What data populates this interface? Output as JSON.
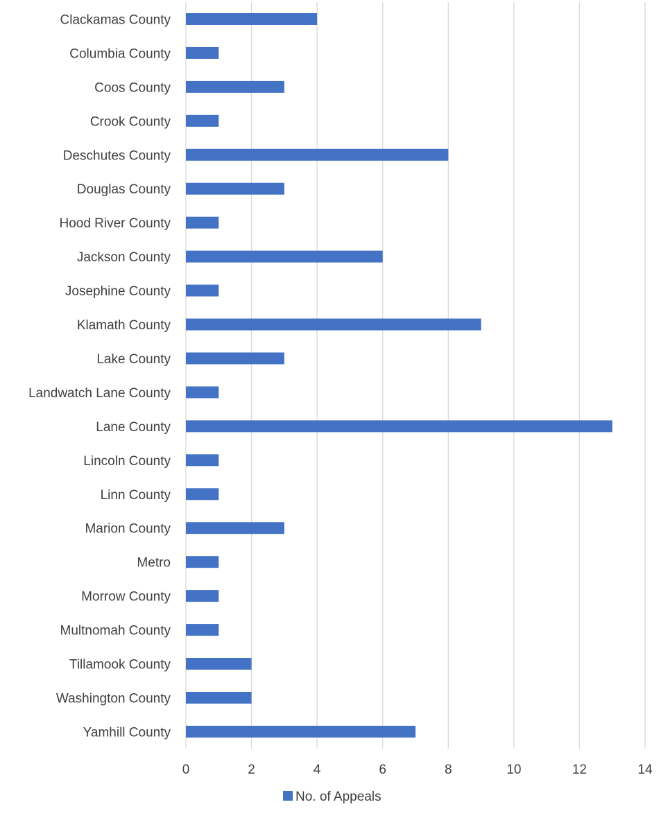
{
  "chart_data": {
    "type": "bar",
    "orientation": "horizontal",
    "categories": [
      "Clackamas County",
      "Columbia County",
      "Coos County",
      "Crook County",
      "Deschutes County",
      "Douglas County",
      "Hood River County",
      "Jackson County",
      "Josephine County",
      "Klamath County",
      "Lake County",
      "Landwatch Lane County",
      "Lane County",
      "Lincoln County",
      "Linn County",
      "Marion County",
      "Metro",
      "Morrow County",
      "Multnomah County",
      "Tillamook County",
      "Washington County",
      "Yamhill County"
    ],
    "series": [
      {
        "name": "No. of Appeals",
        "values": [
          4,
          1,
          3,
          1,
          8,
          3,
          1,
          6,
          1,
          9,
          3,
          1,
          13,
          1,
          1,
          3,
          1,
          1,
          1,
          2,
          2,
          7
        ],
        "color": "#4472C4"
      }
    ],
    "xlim": [
      0,
      14
    ],
    "xticks": [
      "0",
      "2",
      "4",
      "6",
      "8",
      "10",
      "12",
      "14"
    ],
    "grid": true,
    "gridline_color": "#D9D9D9",
    "legend_position": "bottom"
  }
}
